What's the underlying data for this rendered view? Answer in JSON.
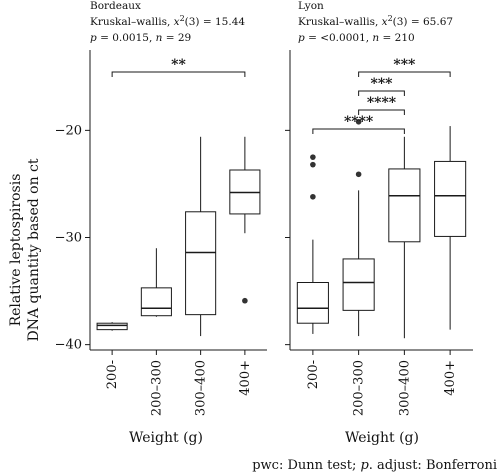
{
  "chart_data": [
    {
      "type": "box",
      "facet": "Bordeaux",
      "test": {
        "name": "Kruskal–wallis, ",
        "statistic": "x",
        "df": "(3)",
        "value": " = 15.44",
        "p_label": "p",
        "p_value": " = 0.0015, ",
        "n_label": "n",
        "n_value": " = 29"
      },
      "categories": [
        "200-",
        "200–300",
        "300–400",
        "400+"
      ],
      "boxes": [
        {
          "min": -38.7,
          "q1": -38.6,
          "median": -38.2,
          "q3": -38.0,
          "max": -37.9,
          "outliers": []
        },
        {
          "min": -37.4,
          "q1": -37.3,
          "median": -36.6,
          "q3": -34.7,
          "max": -31.0,
          "outliers": []
        },
        {
          "min": -39.2,
          "q1": -37.2,
          "median": -31.4,
          "q3": -27.6,
          "max": -20.6,
          "outliers": []
        },
        {
          "min": -29.6,
          "q1": -27.8,
          "median": -25.8,
          "q3": -23.7,
          "max": -20.6,
          "outliers": [
            -35.9
          ]
        }
      ],
      "yticks": [
        -20,
        -30,
        -40
      ],
      "ylim": [
        -40.5,
        -12.5
      ],
      "comparisons": [
        {
          "from": 0,
          "to": 3,
          "label": "**"
        }
      ]
    },
    {
      "type": "box",
      "facet": "Lyon",
      "test": {
        "name": "Kruskal–wallis, ",
        "statistic": "x",
        "df": "(3)",
        "value": " = 65.67",
        "p_label": "p",
        "p_value": " = <0.0001, ",
        "n_label": "n",
        "n_value": " = 210"
      },
      "categories": [
        "200-",
        "200–300",
        "300–400",
        "400+"
      ],
      "boxes": [
        {
          "min": -39.0,
          "q1": -38.0,
          "median": -36.6,
          "q3": -34.2,
          "max": -30.2,
          "outliers": [
            -22.5,
            -23.2,
            -26.2
          ]
        },
        {
          "min": -39.2,
          "q1": -36.8,
          "median": -34.2,
          "q3": -32.0,
          "max": -25.6,
          "outliers": [
            -19.2,
            -24.1
          ]
        },
        {
          "min": -39.4,
          "q1": -30.4,
          "median": -26.1,
          "q3": -23.6,
          "max": -20.6,
          "outliers": []
        },
        {
          "min": -38.6,
          "q1": -29.9,
          "median": -26.1,
          "q3": -22.9,
          "max": -19.6,
          "outliers": []
        }
      ],
      "yticks": [],
      "ylim": [
        -40.5,
        -12.5
      ],
      "comparisons": [
        {
          "from": 1,
          "to": 3,
          "label": "***"
        },
        {
          "from": 1,
          "to": 2,
          "label": "***"
        },
        {
          "from": 1,
          "to": 2,
          "label": "****"
        },
        {
          "from": 0,
          "to": 2,
          "label": "****"
        }
      ]
    }
  ],
  "ylabel_line1": "Relative leptospirosis",
  "ylabel_line2": "DNA quantity based on ct",
  "xlabel": "Weight (g)",
  "caption": "pwc: Dunn test; p. adjust: Bonferroni",
  "caption_parts": {
    "pre": "pwc: Dunn test; ",
    "p": "p",
    "post": ". adjust: Bonferroni"
  },
  "colors": {
    "box_fill": "#ffffff",
    "stroke": "#1a1a1a",
    "outlier": "#333333"
  }
}
